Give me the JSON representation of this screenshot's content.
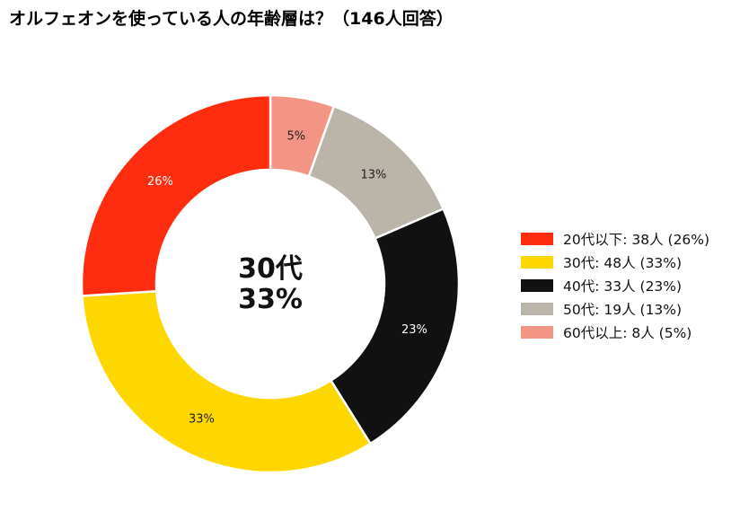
{
  "title": "オルフェオンを使っている人の年齢層は？（146人回答）",
  "center": {
    "line1": "30代",
    "line2": "33%"
  },
  "chart_data": {
    "type": "pie",
    "variant": "donut",
    "title": "オルフェオンを使っている人の年齢層は？（146人回答）",
    "total_respondents": 146,
    "unit": "人",
    "legend_position": "right",
    "direction": "clockwise from top",
    "categories": [
      "20代以下",
      "30代",
      "40代",
      "50代",
      "60代以上"
    ],
    "values": [
      38,
      48,
      33,
      19,
      8
    ],
    "percent_labels": [
      "26%",
      "33%",
      "23%",
      "13%",
      "5%"
    ],
    "legend_labels": [
      "20代以下:  38人 (26%)",
      "30代:  48人 (33%)",
      "40代:  33人 (23%)",
      "50代:  19人 (13%)",
      "60代以上:  8人 (5%)"
    ],
    "colors": [
      "#ff2d10",
      "#ffd700",
      "#111111",
      "#bab5a8",
      "#f29584"
    ],
    "label_colors": [
      "#ffffff",
      "#222222",
      "#ffffff",
      "#222222",
      "#222222"
    ],
    "display_order": [
      "60代以上",
      "50代",
      "40代",
      "30代",
      "20代以下"
    ]
  }
}
